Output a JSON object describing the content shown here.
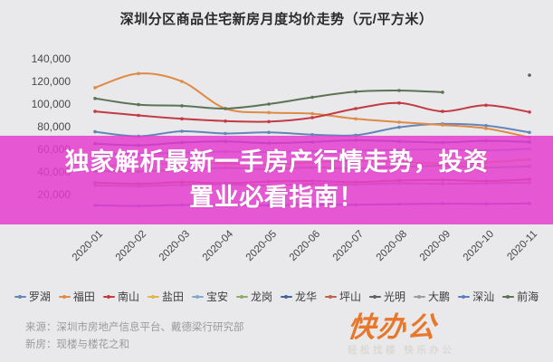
{
  "overlay": {
    "line1": "独家解析最新一手房产行情走势，投资",
    "line2": "置业必看指南！",
    "background": "#e53ace",
    "text_color": "#ffffff"
  },
  "footer": {
    "source_line1": "来源：深圳市房地产信息平台、戴德梁行研究部",
    "source_line2": "新房：现楼与楼花之和",
    "logo_text": "快办公",
    "logo_tagline": "轻松找楼 快乐办公",
    "logo_color": "#e8772a"
  },
  "chart_data": {
    "type": "line",
    "title": "深圳分区商品住宅新房月度均价走势（元/平方米）",
    "categories": [
      "2020-01",
      "2020-02",
      "2020-03",
      "2020-04",
      "2020-05",
      "2020-06",
      "2020-07",
      "2020-08",
      "2020-09",
      "2020-10",
      "2020-11"
    ],
    "ylim": [
      20000,
      140000
    ],
    "y_ticks": [
      140000,
      120000,
      100000,
      80000,
      60000,
      40000,
      20000
    ],
    "grid": false,
    "legend_position": "bottom",
    "series": [
      {
        "name": "罗湖",
        "color": "#6585b8",
        "values": [
          75500,
          71500,
          76000,
          74000,
          75000,
          73000,
          72500,
          79500,
          82500,
          81000,
          75000
        ]
      },
      {
        "name": "福田",
        "color": "#df8a45",
        "values": [
          114500,
          127000,
          120000,
          96000,
          92500,
          91500,
          87000,
          84000,
          81500,
          78500,
          70500
        ]
      },
      {
        "name": "南山",
        "color": "#c23a44",
        "values": [
          93500,
          90000,
          87000,
          85000,
          84500,
          88000,
          96000,
          101000,
          93500,
          99000,
          93000
        ]
      },
      {
        "name": "盐田",
        "color": "#e0b54b",
        "values": [
          45500,
          46000,
          48000,
          47500,
          46500,
          48500,
          50000,
          49000,
          47500,
          48500,
          51000
        ]
      },
      {
        "name": "宝安",
        "color": "#7fa8cf",
        "values": [
          55500,
          56000,
          57000,
          58000,
          57500,
          58500,
          59000,
          59500,
          60000,
          59000,
          60500
        ]
      },
      {
        "name": "龙岗",
        "color": "#84b06c",
        "values": [
          41000,
          40500,
          42000,
          43500,
          42500,
          44000,
          43000,
          44500,
          45500,
          44000,
          45000
        ]
      },
      {
        "name": "龙华",
        "color": "#41639c",
        "values": [
          65000,
          63500,
          66000,
          67000,
          65500,
          66500,
          68000,
          67000,
          66000,
          67500,
          66500
        ]
      },
      {
        "name": "坪山",
        "color": "#bf6448",
        "values": [
          30500,
          29500,
          31000,
          30000,
          31500,
          32000,
          31000,
          32500,
          33000,
          32000,
          33500
        ]
      },
      {
        "name": "光明",
        "color": "#5f5f66",
        "values": [
          null,
          null,
          null,
          null,
          null,
          null,
          null,
          null,
          null,
          null,
          125500
        ]
      },
      {
        "name": "大鹏",
        "color": "#9b9ba1",
        "values": [
          28000,
          27500,
          28500,
          29000,
          28000,
          29500,
          29000,
          30000,
          29500,
          30000,
          30500
        ]
      },
      {
        "name": "深汕",
        "color": "#5b7fc4",
        "values": [
          10500,
          10000,
          10800,
          11000,
          10500,
          11200,
          11000,
          11500,
          12000,
          11800,
          12200
        ]
      },
      {
        "name": "前海",
        "color": "#5c7356",
        "values": [
          105000,
          99500,
          98500,
          96000,
          100000,
          106000,
          111000,
          112000,
          110500,
          null,
          null
        ]
      }
    ]
  }
}
